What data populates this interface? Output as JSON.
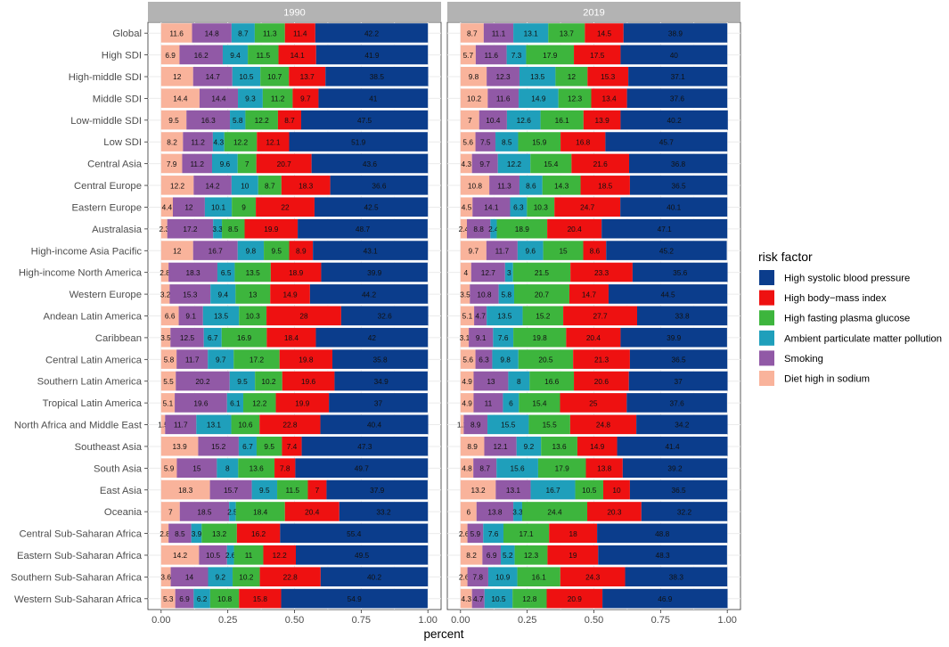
{
  "chart_data": {
    "type": "bar",
    "orientation": "horizontal",
    "stacked": true,
    "xlabel": "percent",
    "ylabel": "",
    "xlim": [
      0,
      1
    ],
    "xticks": [
      "0.00",
      "0.25",
      "0.50",
      "0.75",
      "1.00"
    ],
    "xtick_values": [
      0,
      0.25,
      0.5,
      0.75,
      1.0
    ],
    "legend_title": "risk factor",
    "legend_position": "right",
    "categories": [
      "Global",
      "High SDI",
      "High-middle SDI",
      "Middle SDI",
      "Low-middle SDI",
      "Low SDI",
      "Central Asia",
      "Central Europe",
      "Eastern Europe",
      "Australasia",
      "High-income Asia Pacific",
      "High-income North America",
      "Western Europe",
      "Andean Latin America",
      "Caribbean",
      "Central Latin America",
      "Southern Latin America",
      "Tropical Latin America",
      "North Africa and Middle East",
      "Southeast Asia",
      "South Asia",
      "East Asia",
      "Oceania",
      "Central Sub-Saharan Africa",
      "Eastern Sub-Saharan Africa",
      "Southern Sub-Saharan Africa",
      "Western Sub-Saharan Africa"
    ],
    "series_order_in_bar": [
      "Diet high in sodium",
      "Smoking",
      "Ambient particulate matter pollution",
      "High fasting plasma glucose",
      "High body-mass index",
      "High systolic blood pressure"
    ],
    "legend": [
      {
        "name": "High systolic blood pressure",
        "color": "#0b3d8c"
      },
      {
        "name": "High body−mass index",
        "color": "#ee1111"
      },
      {
        "name": "High fasting plasma glucose",
        "color": "#3db53d"
      },
      {
        "name": "Ambient particulate matter pollution",
        "color": "#1f9fbb"
      },
      {
        "name": "Smoking",
        "color": "#9159a6"
      },
      {
        "name": "Diet high in sodium",
        "color": "#f9b39b"
      }
    ],
    "colors": [
      "#f9b39b",
      "#9159a6",
      "#1f9fbb",
      "#3db53d",
      "#ee1111",
      "#0b3d8c"
    ],
    "panels": [
      {
        "title": "1990",
        "rows": [
          [
            "11.6",
            "14.8",
            "8.7",
            "11.3",
            "11.4",
            "42.2"
          ],
          [
            "6.9",
            "16.2",
            "9.4",
            "11.5",
            "14.1",
            "41.9"
          ],
          [
            "12",
            "14.7",
            "10.5",
            "10.7",
            "13.7",
            "38.5"
          ],
          [
            "14.4",
            "14.4",
            "9.3",
            "11.2",
            "9.7",
            "41"
          ],
          [
            "9.5",
            "16.3",
            "5.8",
            "12.2",
            "8.7",
            "47.5"
          ],
          [
            "8.2",
            "11.2",
            "4.3",
            "12.2",
            "12.1",
            "51.9"
          ],
          [
            "7.9",
            "11.2",
            "9.6",
            "7",
            "20.7",
            "43.6"
          ],
          [
            "12.2",
            "14.2",
            "10",
            "8.7",
            "18.3",
            "36.6"
          ],
          [
            "4.4",
            "12",
            "10.1",
            "9",
            "22",
            "42.5"
          ],
          [
            "2.3",
            "17.2",
            "3.3",
            "8.5",
            "19.9",
            "48.7"
          ],
          [
            "12",
            "16.7",
            "9.8",
            "9.5",
            "8.9",
            "43.1"
          ],
          [
            "2.8",
            "18.3",
            "6.5",
            "13.5",
            "18.9",
            "39.9"
          ],
          [
            "3.2",
            "15.3",
            "9.4",
            "13",
            "14.9",
            "44.2"
          ],
          [
            "6.6",
            "9.1",
            "13.5",
            "10.3",
            "28",
            "32.6"
          ],
          [
            "3.5",
            "12.5",
            "6.7",
            "16.9",
            "18.4",
            "42"
          ],
          [
            "5.8",
            "11.7",
            "9.7",
            "17.2",
            "19.8",
            "35.8"
          ],
          [
            "5.5",
            "20.2",
            "9.5",
            "10.2",
            "19.6",
            "34.9"
          ],
          [
            "5.1",
            "19.6",
            "6.1",
            "12.2",
            "19.9",
            "37"
          ],
          [
            "1.5",
            "11.7",
            "13.1",
            "10.6",
            "22.8",
            "40.4"
          ],
          [
            "13.9",
            "15.2",
            "6.7",
            "9.5",
            "7.4",
            "47.3"
          ],
          [
            "5.9",
            "15",
            "8",
            "13.6",
            "7.8",
            "49.7"
          ],
          [
            "18.3",
            "15.7",
            "9.5",
            "11.5",
            "7",
            "37.9"
          ],
          [
            "7",
            "18.5",
            "2.5",
            "18.4",
            "20.4",
            "33.2"
          ],
          [
            "2.8",
            "8.5",
            "3.9",
            "13.2",
            "16.2",
            "55.4"
          ],
          [
            "14.2",
            "10.5",
            "2.6",
            "11",
            "12.2",
            "49.5"
          ],
          [
            "3.6",
            "14",
            "9.2",
            "10.2",
            "22.8",
            "40.2"
          ],
          [
            "5.3",
            "6.9",
            "6.2",
            "10.8",
            "15.8",
            "54.9"
          ]
        ]
      },
      {
        "title": "2019",
        "rows": [
          [
            "8.7",
            "11.1",
            "13.1",
            "13.7",
            "14.5",
            "38.9"
          ],
          [
            "5.7",
            "11.6",
            "7.3",
            "17.9",
            "17.5",
            "40"
          ],
          [
            "9.8",
            "12.3",
            "13.5",
            "12",
            "15.3",
            "37.1"
          ],
          [
            "10.2",
            "11.6",
            "14.9",
            "12.3",
            "13.4",
            "37.6"
          ],
          [
            "7",
            "10.4",
            "12.6",
            "16.1",
            "13.9",
            "40.2"
          ],
          [
            "5.6",
            "7.5",
            "8.5",
            "15.9",
            "16.8",
            "45.7"
          ],
          [
            "4.3",
            "9.7",
            "12.2",
            "15.4",
            "21.6",
            "36.8"
          ],
          [
            "10.8",
            "11.3",
            "8.6",
            "14.3",
            "18.5",
            "36.5"
          ],
          [
            "4.5",
            "14.1",
            "6.3",
            "10.3",
            "24.7",
            "40.1"
          ],
          [
            "2.4",
            "8.8",
            "2.4",
            "18.9",
            "20.4",
            "47.1"
          ],
          [
            "9.7",
            "11.7",
            "9.6",
            "15",
            "8.6",
            "45.2"
          ],
          [
            "4",
            "12.7",
            "3",
            "21.5",
            "23.3",
            "35.6"
          ],
          [
            "3.5",
            "10.8",
            "5.8",
            "20.7",
            "14.7",
            "44.5"
          ],
          [
            "5.1",
            "4.7",
            "13.5",
            "15.2",
            "27.7",
            "33.8"
          ],
          [
            "3.1",
            "9.1",
            "7.6",
            "19.8",
            "20.4",
            "39.9"
          ],
          [
            "5.6",
            "6.3",
            "9.8",
            "20.5",
            "21.3",
            "36.5"
          ],
          [
            "4.9",
            "13",
            "8",
            "16.6",
            "20.6",
            "37"
          ],
          [
            "4.9",
            "11",
            "6",
            "15.4",
            "25",
            "37.6"
          ],
          [
            "1.2",
            "8.9",
            "15.5",
            "15.5",
            "24.8",
            "34.2"
          ],
          [
            "8.9",
            "12.1",
            "9.2",
            "13.6",
            "14.9",
            "41.4"
          ],
          [
            "4.8",
            "8.7",
            "15.6",
            "17.9",
            "13.8",
            "39.2"
          ],
          [
            "13.2",
            "13.1",
            "16.7",
            "10.5",
            "10",
            "36.5"
          ],
          [
            "6",
            "13.8",
            "3.3",
            "24.4",
            "20.3",
            "32.2"
          ],
          [
            "2.6",
            "5.9",
            "7.6",
            "17.1",
            "18",
            "48.8"
          ],
          [
            "8.2",
            "6.9",
            "5.2",
            "12.3",
            "19",
            "48.3"
          ],
          [
            "2.6",
            "7.8",
            "10.9",
            "16.1",
            "24.3",
            "38.3"
          ],
          [
            "4.3",
            "4.7",
            "10.5",
            "12.8",
            "20.9",
            "46.9"
          ]
        ]
      }
    ]
  }
}
